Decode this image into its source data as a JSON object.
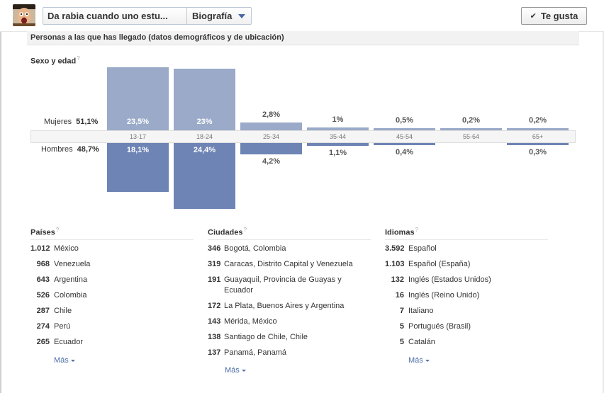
{
  "header": {
    "page_name": "Da rabia cuando uno estu...",
    "section_label": "Biografía",
    "like_button_label": "Te gusta"
  },
  "demographics": {
    "section_title": "Personas a las que has llegado (datos demográficos y de ubicación)",
    "subtitle": "Sexo y edad",
    "help_mark": "?",
    "women": {
      "label": "Mujeres",
      "percent": "51,1%"
    },
    "men": {
      "label": "Hombres",
      "percent": "48,7%"
    },
    "age_groups": [
      "13-17",
      "18-24",
      "25-34",
      "35-44",
      "45-54",
      "55-64",
      "65+"
    ],
    "women_values_text": [
      "23,5%",
      "23%",
      "2,8%",
      "1%",
      "0,5%",
      "0,2%",
      "0,2%"
    ],
    "men_values_text": [
      "18,1%",
      "24,4%",
      "4,2%",
      "1,1%",
      "0,4%",
      "",
      "0,3%"
    ]
  },
  "chart_data": {
    "type": "bar",
    "title": "Sexo y edad",
    "categories": [
      "13-17",
      "18-24",
      "25-34",
      "35-44",
      "45-54",
      "55-64",
      "65+"
    ],
    "series": [
      {
        "name": "Mujeres",
        "values": [
          23.5,
          23,
          2.8,
          1,
          0.5,
          0.2,
          0.2
        ]
      },
      {
        "name": "Hombres",
        "values": [
          18.1,
          24.4,
          4.2,
          1.1,
          0.4,
          0,
          0.3
        ]
      }
    ]
  },
  "countries": {
    "title": "Países",
    "items": [
      {
        "count": "1.012",
        "name": "México"
      },
      {
        "count": "968",
        "name": "Venezuela"
      },
      {
        "count": "643",
        "name": "Argentina"
      },
      {
        "count": "526",
        "name": "Colombia"
      },
      {
        "count": "287",
        "name": "Chile"
      },
      {
        "count": "274",
        "name": "Perú"
      },
      {
        "count": "265",
        "name": "Ecuador"
      }
    ],
    "more_label": "Más"
  },
  "cities": {
    "title": "Ciudades",
    "items": [
      {
        "count": "346",
        "name": "Bogotá, Colombia"
      },
      {
        "count": "319",
        "name": "Caracas, Distrito Capital y Venezuela"
      },
      {
        "count": "191",
        "name": "Guayaquil, Provincia de Guayas y Ecuador"
      },
      {
        "count": "172",
        "name": "La Plata, Buenos Aires y Argentina"
      },
      {
        "count": "143",
        "name": "Mérida, México"
      },
      {
        "count": "138",
        "name": "Santiago de Chile, Chile"
      },
      {
        "count": "137",
        "name": "Panamá, Panamá"
      }
    ],
    "more_label": "Más"
  },
  "languages": {
    "title": "Idiomas",
    "items": [
      {
        "count": "3.592",
        "name": "Español"
      },
      {
        "count": "1.103",
        "name": "Español (España)"
      },
      {
        "count": "132",
        "name": "Inglés (Estados Unidos)"
      },
      {
        "count": "16",
        "name": "Inglés (Reino Unido)"
      },
      {
        "count": "7",
        "name": "Italiano"
      },
      {
        "count": "5",
        "name": "Portugués (Brasil)"
      },
      {
        "count": "5",
        "name": "Catalán"
      }
    ],
    "more_label": "Más"
  },
  "colors": {
    "women_bar": "#9aaac8",
    "men_bar": "#6d84b4",
    "link": "#4e6ea8"
  }
}
